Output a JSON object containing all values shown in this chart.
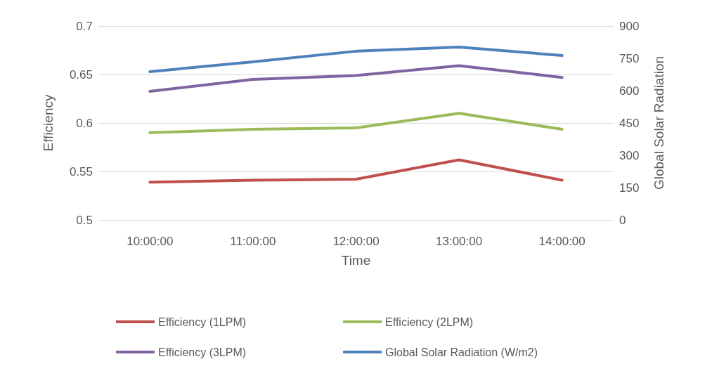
{
  "chart_data": {
    "type": "line",
    "xlabel": "Time",
    "ylabel": "Efficiency",
    "y2label": "Global Solar Radiation",
    "categories": [
      "10:00:00",
      "11:00:00",
      "12:00:00",
      "13:00:00",
      "14:00:00"
    ],
    "series": [
      {
        "name": "Efficiency (1LPM)",
        "color": "#c0504d",
        "values": [
          0.539,
          0.541,
          0.542,
          0.562,
          0.541
        ]
      },
      {
        "name": "Efficiency (2LPM)",
        "color": "#9bbb59",
        "values": [
          0.59,
          0.5935,
          0.595,
          0.61,
          0.5935
        ]
      },
      {
        "name": "Efficiency (3LPM)",
        "color": "#8064a2",
        "values": [
          0.6326,
          0.645,
          0.649,
          0.659,
          0.647
        ]
      },
      {
        "name": "Global Solar Radiation (W/m2)",
        "color": "#4f81bd",
        "values": [
          688,
          734,
          783,
          802,
          763
        ],
        "axis": "y2"
      }
    ],
    "ylim": [
      0.5,
      0.7
    ],
    "yticks": [
      0.5,
      0.55,
      0.6,
      0.65,
      0.7
    ],
    "y2lim": [
      0,
      900
    ],
    "y2ticks": [
      0,
      150,
      300,
      450,
      600,
      750,
      900
    ],
    "grid": "y",
    "legend": "bottom",
    "marker": "none",
    "line_style": "solid"
  }
}
